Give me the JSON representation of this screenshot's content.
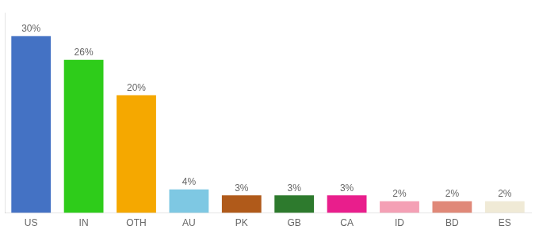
{
  "chart_data": {
    "type": "bar",
    "categories": [
      "US",
      "IN",
      "OTH",
      "AU",
      "PK",
      "GB",
      "CA",
      "ID",
      "BD",
      "ES"
    ],
    "values": [
      30,
      26,
      20,
      4,
      3,
      3,
      3,
      2,
      2,
      2
    ],
    "value_labels": [
      "30%",
      "26%",
      "20%",
      "4%",
      "3%",
      "3%",
      "3%",
      "2%",
      "2%",
      "2%"
    ],
    "colors": [
      "#4472c4",
      "#2ecc1a",
      "#f5a800",
      "#7ec8e3",
      "#b05a1a",
      "#2d7a2d",
      "#e91e8c",
      "#f4a0b5",
      "#e08878",
      "#f0ead6"
    ],
    "ylim": [
      0,
      34
    ],
    "grid": false,
    "data_labels": true,
    "tick_labels": "x"
  }
}
